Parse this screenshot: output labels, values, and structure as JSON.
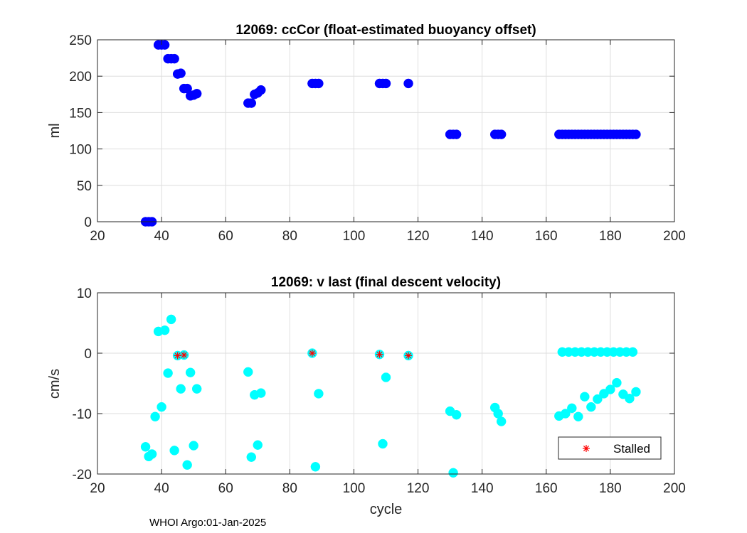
{
  "chart_data": [
    {
      "type": "scatter",
      "title": "12069: ccCor (float-estimated buoyancy offset)",
      "xlabel": "",
      "ylabel": "ml",
      "xlim": [
        20,
        200
      ],
      "ylim": [
        0,
        250
      ],
      "xticks": [
        20,
        40,
        60,
        80,
        100,
        120,
        140,
        160,
        180,
        200
      ],
      "yticks": [
        0,
        50,
        100,
        150,
        200,
        250
      ],
      "grid": true,
      "series": [
        {
          "color": "#0000ff",
          "points": [
            [
              35,
              0
            ],
            [
              36,
              0
            ],
            [
              37,
              0
            ],
            [
              39,
              243
            ],
            [
              40,
              243
            ],
            [
              41,
              243
            ],
            [
              42,
              224
            ],
            [
              43,
              224
            ],
            [
              44,
              224
            ],
            [
              45,
              203
            ],
            [
              46,
              204
            ],
            [
              47,
              183
            ],
            [
              48,
              183
            ],
            [
              49,
              173
            ],
            [
              50,
              174
            ],
            [
              51,
              176
            ],
            [
              67,
              163
            ],
            [
              68,
              163
            ],
            [
              69,
              175
            ],
            [
              70,
              177
            ],
            [
              71,
              181
            ],
            [
              87,
              190
            ],
            [
              88,
              190
            ],
            [
              89,
              190
            ],
            [
              108,
              190
            ],
            [
              109,
              190
            ],
            [
              110,
              190
            ],
            [
              117,
              190
            ],
            [
              130,
              120
            ],
            [
              131,
              120
            ],
            [
              132,
              120
            ],
            [
              144,
              120
            ],
            [
              145,
              120
            ],
            [
              146,
              120
            ],
            [
              164,
              120
            ],
            [
              165,
              120
            ],
            [
              166,
              120
            ],
            [
              167,
              120
            ],
            [
              168,
              120
            ],
            [
              169,
              120
            ],
            [
              170,
              120
            ],
            [
              171,
              120
            ],
            [
              172,
              120
            ],
            [
              173,
              120
            ],
            [
              174,
              120
            ],
            [
              175,
              120
            ],
            [
              176,
              120
            ],
            [
              177,
              120
            ],
            [
              178,
              120
            ],
            [
              179,
              120
            ],
            [
              180,
              120
            ],
            [
              181,
              120
            ],
            [
              182,
              120
            ],
            [
              183,
              120
            ],
            [
              184,
              120
            ],
            [
              185,
              120
            ],
            [
              186,
              120
            ],
            [
              187,
              120
            ],
            [
              188,
              120
            ]
          ]
        }
      ]
    },
    {
      "type": "scatter",
      "title": "12069: v last (final descent velocity)",
      "xlabel": "cycle",
      "ylabel": "cm/s",
      "xlim": [
        20,
        200
      ],
      "ylim": [
        -20,
        10
      ],
      "xticks": [
        20,
        40,
        60,
        80,
        100,
        120,
        140,
        160,
        180,
        200
      ],
      "yticks": [
        -20,
        -10,
        0,
        10
      ],
      "grid": true,
      "legend": {
        "position": "bottom-right",
        "entries": [
          "Stalled"
        ]
      },
      "series": [
        {
          "color": "#00ffff",
          "points": [
            [
              35,
              -15.5
            ],
            [
              36,
              -17.1
            ],
            [
              37,
              -16.7
            ],
            [
              38,
              -10.5
            ],
            [
              39,
              3.6
            ],
            [
              40,
              -8.9
            ],
            [
              41,
              3.8
            ],
            [
              42,
              -3.3
            ],
            [
              43,
              5.6
            ],
            [
              44,
              -16.1
            ],
            [
              45,
              -0.4
            ],
            [
              46,
              -5.9
            ],
            [
              47,
              -0.3
            ],
            [
              48,
              -18.5
            ],
            [
              49,
              -3.2
            ],
            [
              50,
              -15.3
            ],
            [
              51,
              -5.9
            ],
            [
              67,
              -3.1
            ],
            [
              68,
              -17.2
            ],
            [
              69,
              -6.9
            ],
            [
              70,
              -15.2
            ],
            [
              71,
              -6.6
            ],
            [
              87,
              0.0
            ],
            [
              88,
              -18.8
            ],
            [
              89,
              -6.7
            ],
            [
              108,
              -0.2
            ],
            [
              109,
              -15.0
            ],
            [
              110,
              -4.0
            ],
            [
              117,
              -0.4
            ],
            [
              130,
              -9.6
            ],
            [
              131,
              -19.8
            ],
            [
              132,
              -10.2
            ],
            [
              144,
              -9.0
            ],
            [
              145,
              -10.0
            ],
            [
              146,
              -11.3
            ],
            [
              164,
              -10.4
            ],
            [
              166,
              -10.0
            ],
            [
              168,
              -9.1
            ],
            [
              170,
              -10.5
            ],
            [
              172,
              -7.2
            ],
            [
              174,
              -8.9
            ],
            [
              176,
              -7.6
            ],
            [
              178,
              -6.7
            ],
            [
              180,
              -6.0
            ],
            [
              182,
              -4.9
            ],
            [
              184,
              -6.8
            ],
            [
              186,
              -7.5
            ],
            [
              188,
              -6.4
            ],
            [
              165,
              0.2
            ],
            [
              167,
              0.2
            ],
            [
              169,
              0.2
            ],
            [
              171,
              0.2
            ],
            [
              173,
              0.2
            ],
            [
              175,
              0.2
            ],
            [
              177,
              0.2
            ],
            [
              179,
              0.2
            ],
            [
              181,
              0.2
            ],
            [
              183,
              0.2
            ],
            [
              185,
              0.2
            ],
            [
              187,
              0.2
            ]
          ]
        },
        {
          "name": "Stalled",
          "marker": "asterisk",
          "color": "#ff0000",
          "points": [
            [
              45,
              -0.4
            ],
            [
              47,
              -0.3
            ],
            [
              87,
              0.0
            ],
            [
              108,
              -0.2
            ],
            [
              117,
              -0.4
            ]
          ]
        }
      ]
    }
  ],
  "footer": "WHOI Argo:01-Jan-2025"
}
